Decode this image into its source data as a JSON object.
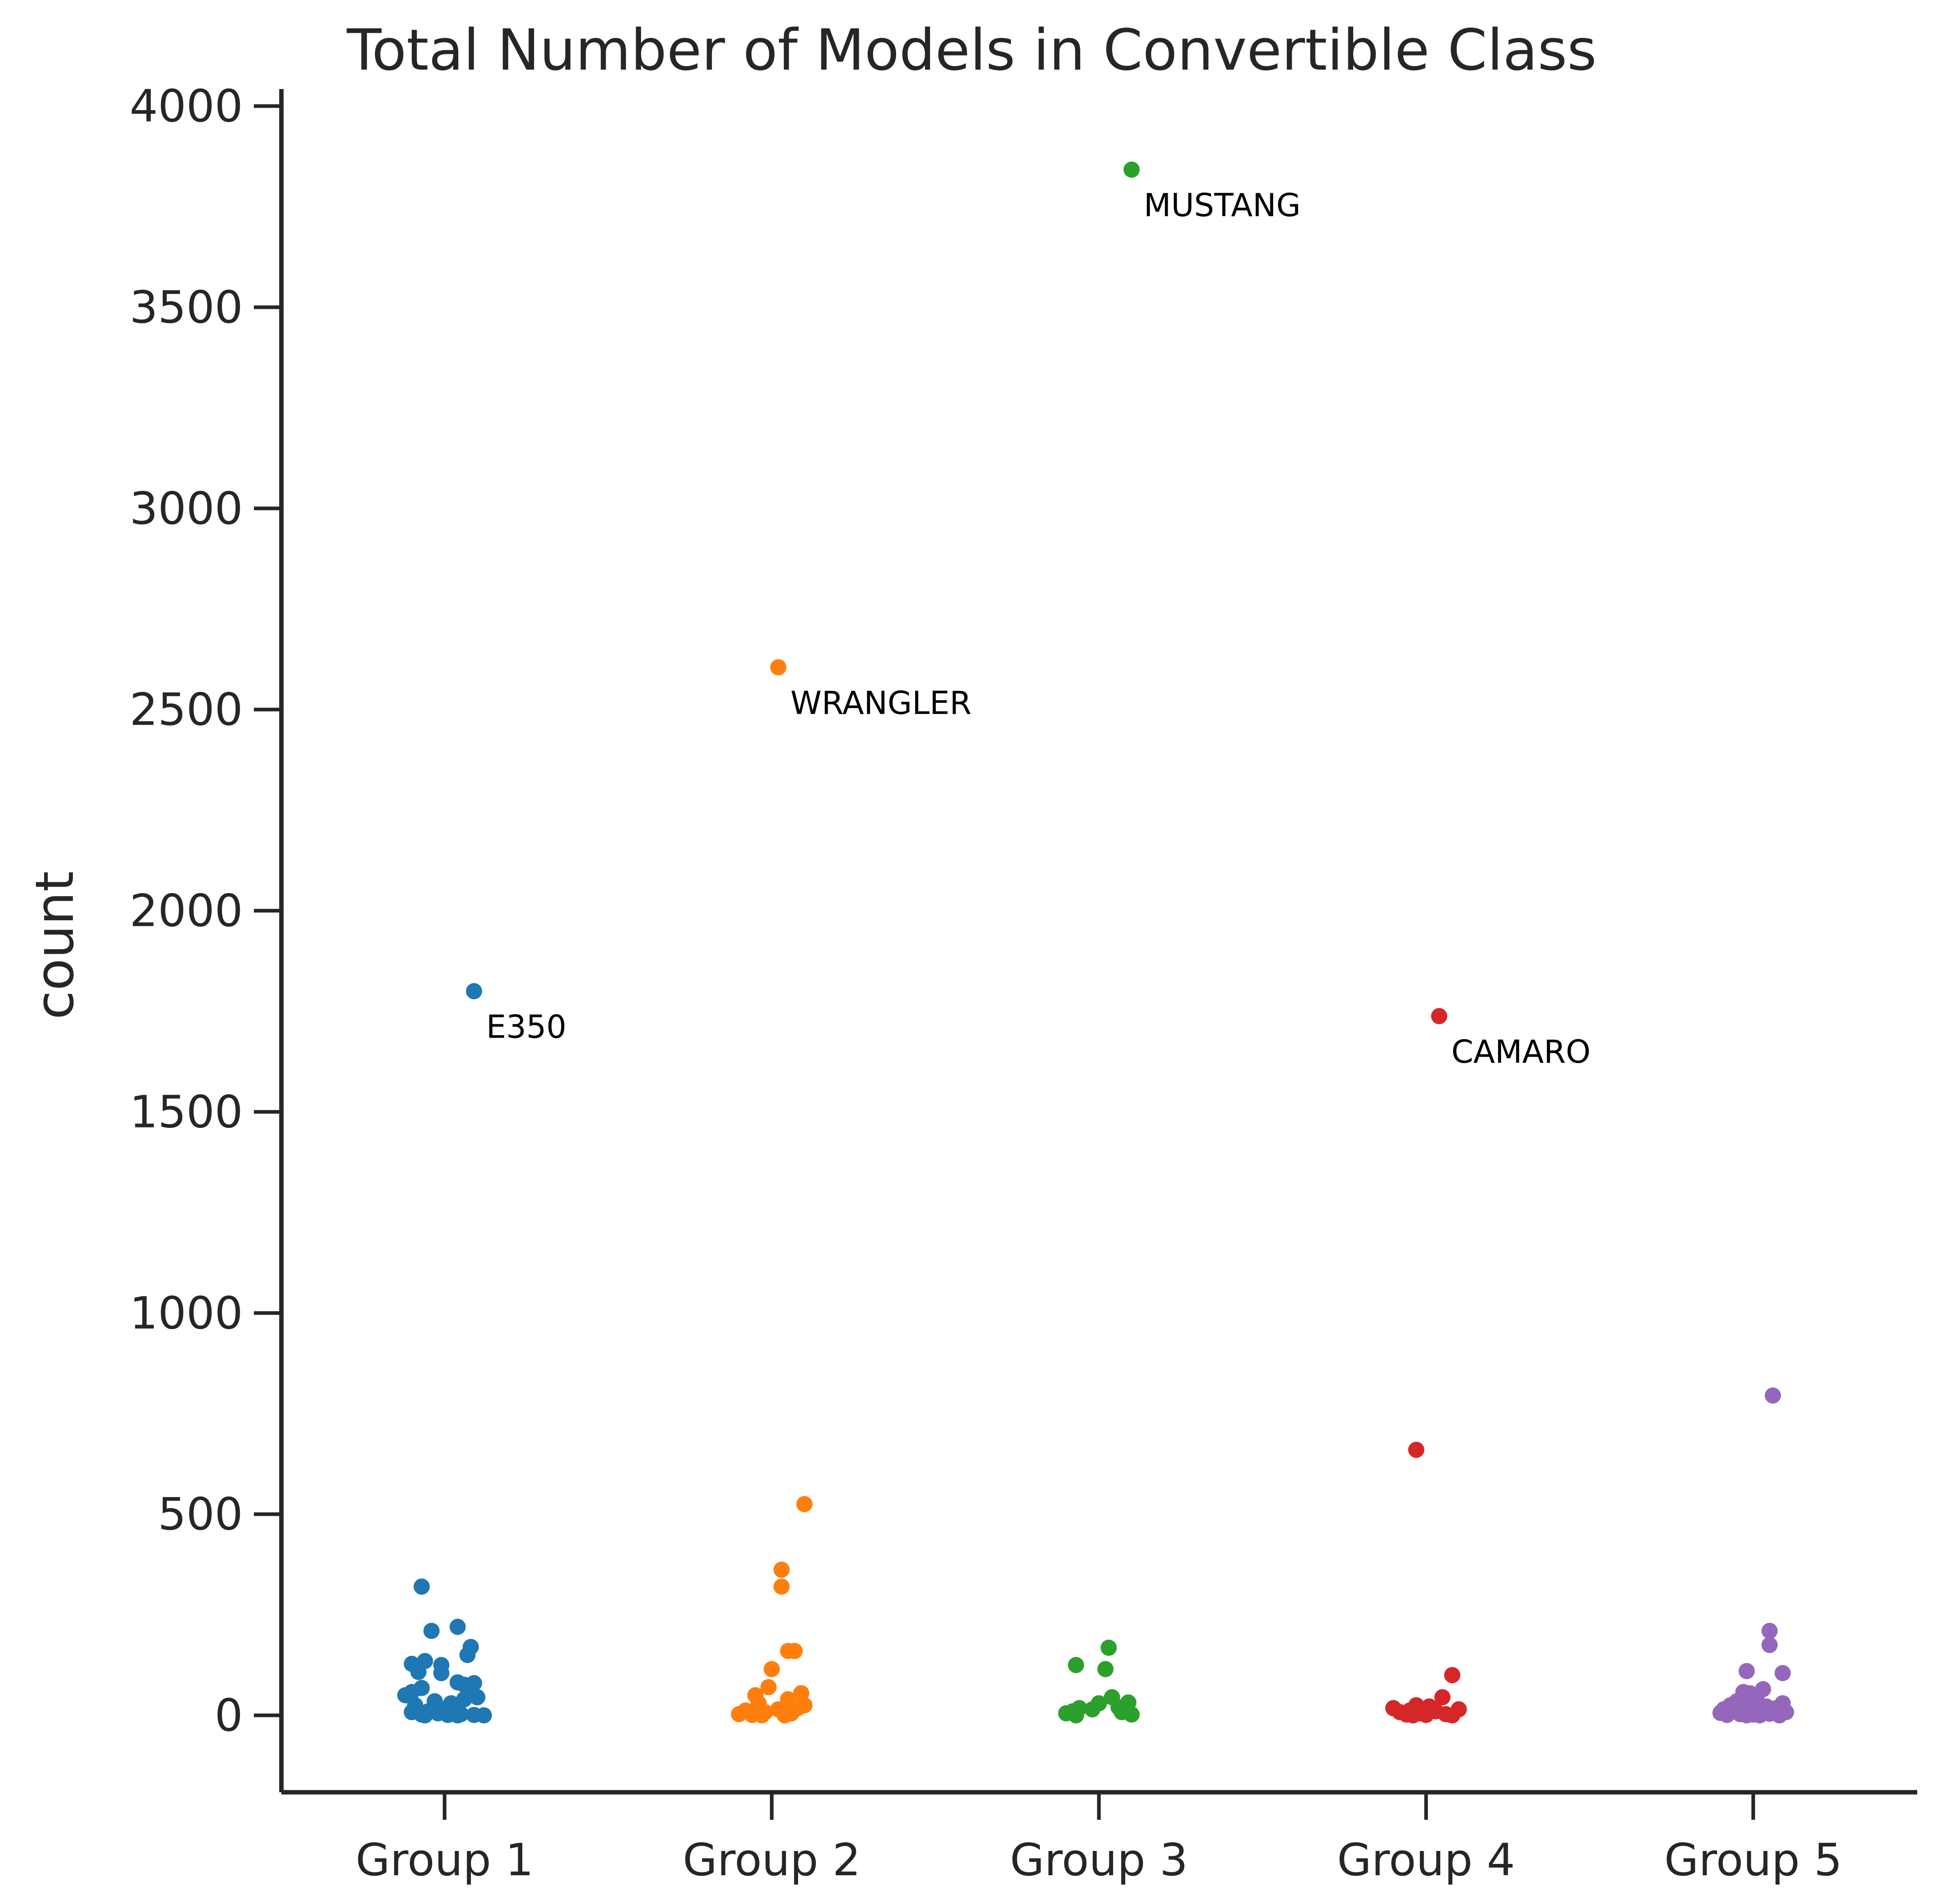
{
  "chart_data": {
    "type": "scatter",
    "title": "Total Number of Models in Convertible Class",
    "xlabel": "",
    "ylabel": "count",
    "ylim": [
      -190,
      4040
    ],
    "yticks": [
      0,
      500,
      1000,
      1500,
      2000,
      2500,
      3000,
      3500,
      4000
    ],
    "categories": [
      "Group 1",
      "Group 2",
      "Group 3",
      "Group 4",
      "Group 5"
    ],
    "grid": false,
    "legend": "none",
    "series": [
      {
        "color": "#1f77b4",
        "points": [
          {
            "x": 0.09,
            "y": 1800,
            "label": "E350"
          },
          {
            "x": -0.07,
            "y": 320
          },
          {
            "x": 0.04,
            "y": 220
          },
          {
            "x": -0.04,
            "y": 210
          },
          {
            "x": 0.08,
            "y": 170
          },
          {
            "x": 0.07,
            "y": 150
          },
          {
            "x": -0.06,
            "y": 135
          },
          {
            "x": -0.1,
            "y": 128
          },
          {
            "x": -0.01,
            "y": 125
          },
          {
            "x": -0.08,
            "y": 108
          },
          {
            "x": -0.01,
            "y": 105
          },
          {
            "x": 0.04,
            "y": 82
          },
          {
            "x": 0.09,
            "y": 80
          },
          {
            "x": 0.06,
            "y": 76
          },
          {
            "x": -0.07,
            "y": 68
          },
          {
            "x": -0.1,
            "y": 58
          },
          {
            "x": -0.12,
            "y": 50
          },
          {
            "x": 0.08,
            "y": 50
          },
          {
            "x": 0.1,
            "y": 45
          },
          {
            "x": 0.06,
            "y": 40
          },
          {
            "x": -0.03,
            "y": 35
          },
          {
            "x": 0.02,
            "y": 30
          },
          {
            "x": -0.09,
            "y": 25
          },
          {
            "x": 0.03,
            "y": 20
          },
          {
            "x": 0.0,
            "y": 15
          },
          {
            "x": -0.05,
            "y": 10
          },
          {
            "x": -0.1,
            "y": 8
          },
          {
            "x": -0.02,
            "y": 5
          },
          {
            "x": 0.05,
            "y": 3
          },
          {
            "x": -0.07,
            "y": 2
          },
          {
            "x": 0.01,
            "y": 1
          },
          {
            "x": 0.09,
            "y": 1
          },
          {
            "x": -0.06,
            "y": 0
          },
          {
            "x": 0.04,
            "y": 0
          },
          {
            "x": 0.12,
            "y": 0
          }
        ]
      },
      {
        "color": "#ff7f0e",
        "points": [
          {
            "x": 0.02,
            "y": 2605,
            "label": "WRANGLER"
          },
          {
            "x": 0.1,
            "y": 525
          },
          {
            "x": 0.03,
            "y": 362
          },
          {
            "x": 0.03,
            "y": 320
          },
          {
            "x": 0.05,
            "y": 160
          },
          {
            "x": 0.07,
            "y": 160
          },
          {
            "x": 0.0,
            "y": 115
          },
          {
            "x": -0.01,
            "y": 70
          },
          {
            "x": 0.09,
            "y": 55
          },
          {
            "x": -0.05,
            "y": 50
          },
          {
            "x": 0.05,
            "y": 40
          },
          {
            "x": -0.04,
            "y": 30
          },
          {
            "x": 0.1,
            "y": 25
          },
          {
            "x": 0.08,
            "y": 18
          },
          {
            "x": 0.02,
            "y": 15
          },
          {
            "x": -0.08,
            "y": 12
          },
          {
            "x": -0.02,
            "y": 8
          },
          {
            "x": 0.06,
            "y": 5
          },
          {
            "x": -0.1,
            "y": 3
          },
          {
            "x": -0.06,
            "y": 1
          },
          {
            "x": -0.03,
            "y": 0
          },
          {
            "x": 0.04,
            "y": 0
          }
        ]
      },
      {
        "color": "#2ca02c",
        "points": [
          {
            "x": 0.1,
            "y": 3842,
            "label": "MUSTANG"
          },
          {
            "x": 0.03,
            "y": 168
          },
          {
            "x": -0.07,
            "y": 125
          },
          {
            "x": 0.02,
            "y": 115
          },
          {
            "x": 0.04,
            "y": 45
          },
          {
            "x": 0.09,
            "y": 32
          },
          {
            "x": 0.0,
            "y": 30
          },
          {
            "x": 0.06,
            "y": 20
          },
          {
            "x": -0.06,
            "y": 18
          },
          {
            "x": -0.02,
            "y": 15
          },
          {
            "x": -0.08,
            "y": 10
          },
          {
            "x": 0.07,
            "y": 8
          },
          {
            "x": -0.1,
            "y": 5
          },
          {
            "x": 0.1,
            "y": 2
          },
          {
            "x": -0.07,
            "y": 0
          }
        ]
      },
      {
        "color": "#d62728",
        "points": [
          {
            "x": 0.04,
            "y": 1738,
            "label": "CAMARO"
          },
          {
            "x": -0.03,
            "y": 660
          },
          {
            "x": 0.08,
            "y": 100
          },
          {
            "x": 0.05,
            "y": 45
          },
          {
            "x": -0.03,
            "y": 25
          },
          {
            "x": 0.01,
            "y": 22
          },
          {
            "x": -0.1,
            "y": 18
          },
          {
            "x": 0.1,
            "y": 15
          },
          {
            "x": -0.05,
            "y": 12
          },
          {
            "x": 0.03,
            "y": 10
          },
          {
            "x": -0.08,
            "y": 8
          },
          {
            "x": -0.02,
            "y": 5
          },
          {
            "x": 0.06,
            "y": 3
          },
          {
            "x": -0.06,
            "y": 2
          },
          {
            "x": 0.0,
            "y": 1
          },
          {
            "x": 0.08,
            "y": 0
          },
          {
            "x": -0.04,
            "y": 0
          }
        ]
      },
      {
        "color": "#9467bd",
        "points": [
          {
            "x": 0.06,
            "y": 795
          },
          {
            "x": 0.05,
            "y": 210
          },
          {
            "x": 0.05,
            "y": 175
          },
          {
            "x": -0.02,
            "y": 110
          },
          {
            "x": 0.09,
            "y": 105
          },
          {
            "x": 0.03,
            "y": 65
          },
          {
            "x": -0.03,
            "y": 58
          },
          {
            "x": -0.01,
            "y": 55
          },
          {
            "x": 0.01,
            "y": 45
          },
          {
            "x": -0.05,
            "y": 35
          },
          {
            "x": 0.09,
            "y": 30
          },
          {
            "x": 0.0,
            "y": 28
          },
          {
            "x": -0.07,
            "y": 25
          },
          {
            "x": 0.04,
            "y": 22
          },
          {
            "x": -0.03,
            "y": 20
          },
          {
            "x": 0.07,
            "y": 18
          },
          {
            "x": -0.09,
            "y": 15
          },
          {
            "x": 0.02,
            "y": 12
          },
          {
            "x": -0.06,
            "y": 10
          },
          {
            "x": 0.1,
            "y": 8
          },
          {
            "x": -0.1,
            "y": 6
          },
          {
            "x": 0.05,
            "y": 4
          },
          {
            "x": -0.04,
            "y": 3
          },
          {
            "x": 0.0,
            "y": 2
          },
          {
            "x": -0.08,
            "y": 1
          },
          {
            "x": 0.08,
            "y": 0
          },
          {
            "x": 0.02,
            "y": 0
          },
          {
            "x": -0.02,
            "y": 0
          }
        ]
      }
    ]
  }
}
